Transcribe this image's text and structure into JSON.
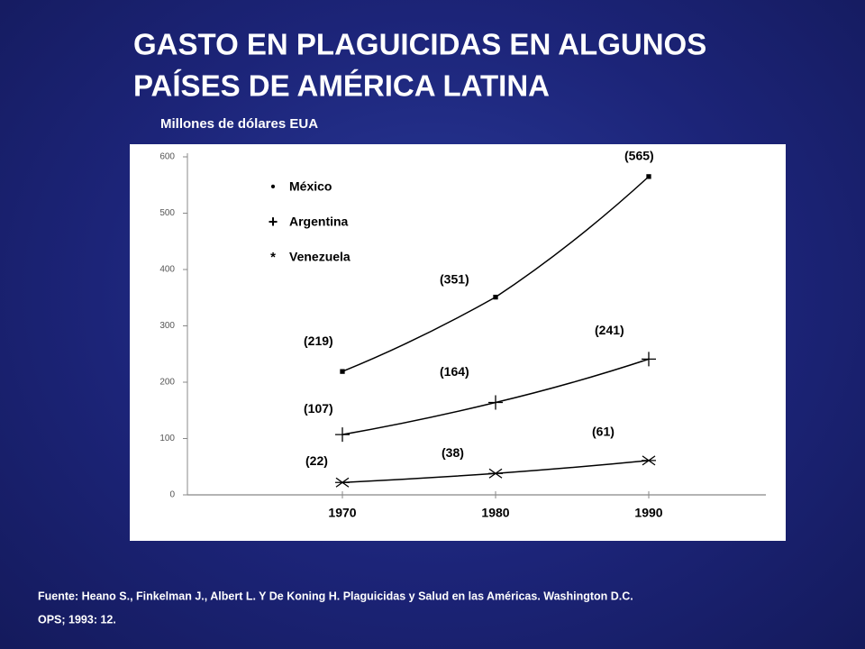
{
  "title_lines": [
    "GASTO EN PLAGUICIDAS EN ALGUNOS",
    "PAÍSES DE AMÉRICA LATINA"
  ],
  "source_lines": [
    "Fuente:  Heano S., Finkelman J., Albert L. Y De Koning H.  Plaguicidas y Salud en las Américas.  Washington D.C.",
    "OPS; 1993: 12."
  ],
  "chart_data": {
    "type": "line",
    "subtitle": "Millones de dólares EUA",
    "x": [
      1970,
      1980,
      1990
    ],
    "xlim": [
      1960,
      1998
    ],
    "xticks": [
      1970,
      1980,
      1990
    ],
    "ylim": [
      0,
      600
    ],
    "yticks": [
      0,
      100,
      200,
      300,
      400,
      500,
      600
    ],
    "grid": false,
    "legend": "upper-left",
    "series": [
      {
        "name": "México",
        "color": "#000000",
        "marker": "dot",
        "values": [
          219,
          351,
          565
        ],
        "value_labels": [
          "(219)",
          "(351)",
          "(565)"
        ]
      },
      {
        "name": "Argentina",
        "color": "#000000",
        "marker": "plus",
        "values": [
          107,
          164,
          241
        ],
        "value_labels": [
          "(107)",
          "(164)",
          "(241)"
        ]
      },
      {
        "name": "Venezuela",
        "color": "#000000",
        "marker": "star",
        "values": [
          22,
          38,
          61
        ],
        "value_labels": [
          "(22)",
          "(38)",
          "(61)"
        ]
      }
    ]
  }
}
